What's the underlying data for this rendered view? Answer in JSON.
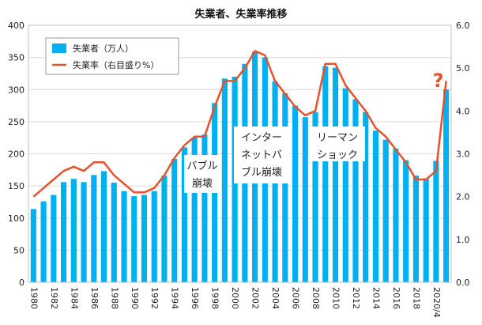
{
  "chart_data": {
    "type": "bar+line",
    "title": "失業者、失業率推移",
    "categories": [
      "1980",
      "1981",
      "1982",
      "1983",
      "1984",
      "1985",
      "1986",
      "1987",
      "1988",
      "1989",
      "1990",
      "1991",
      "1992",
      "1993",
      "1994",
      "1995",
      "1996",
      "1997",
      "1998",
      "1999",
      "2000",
      "2001",
      "2002",
      "2003",
      "2004",
      "2005",
      "2006",
      "2007",
      "2008",
      "2009",
      "2010",
      "2011",
      "2012",
      "2013",
      "2014",
      "2015",
      "2016",
      "2017",
      "2018",
      "2019",
      "2020/4",
      "2020/5"
    ],
    "x_tick_labels": [
      "1980",
      "1982",
      "1984",
      "1986",
      "1988",
      "1990",
      "1992",
      "1994",
      "1996",
      "1998",
      "2000",
      "2002",
      "2004",
      "2006",
      "2008",
      "2010",
      "2012",
      "2014",
      "2016",
      "2018",
      "2020/4"
    ],
    "series": [
      {
        "name": "失業者（万人）",
        "type": "bar",
        "axis": "left",
        "color": "#00b0f0",
        "values": [
          114,
          126,
          136,
          156,
          161,
          156,
          167,
          173,
          155,
          142,
          134,
          136,
          142,
          166,
          192,
          210,
          225,
          230,
          279,
          317,
          320,
          340,
          359,
          350,
          313,
          294,
          275,
          257,
          265,
          336,
          334,
          302,
          285,
          265,
          236,
          222,
          208,
          190,
          166,
          162,
          189,
          300
        ]
      },
      {
        "name": "失業率（右目盛り%）",
        "type": "line",
        "axis": "right",
        "color": "#e8522b",
        "values": [
          2.0,
          2.2,
          2.4,
          2.6,
          2.7,
          2.6,
          2.8,
          2.8,
          2.5,
          2.3,
          2.1,
          2.1,
          2.2,
          2.5,
          2.9,
          3.2,
          3.4,
          3.4,
          4.1,
          4.7,
          4.7,
          5.0,
          5.4,
          5.3,
          4.7,
          4.4,
          4.1,
          3.9,
          4.0,
          5.1,
          5.1,
          4.6,
          4.3,
          4.0,
          3.6,
          3.4,
          3.1,
          2.8,
          2.4,
          2.4,
          2.6,
          4.7
        ]
      }
    ],
    "ylim_left": [
      0,
      400
    ],
    "yticks_left": [
      "0",
      "50",
      "100",
      "150",
      "200",
      "250",
      "300",
      "350",
      "400"
    ],
    "ylim_right": [
      0,
      6
    ],
    "yticks_right": [
      "0.0",
      "1.0",
      "2.0",
      "3.0",
      "4.0",
      "5.0",
      "6.0"
    ],
    "grid": true,
    "legend_position": "top-left",
    "annotations": [
      {
        "lines": [
          "バブル",
          "崩壊"
        ],
        "at": "1996"
      },
      {
        "lines": [
          "インター",
          "ネットバ",
          "ブル崩壊"
        ],
        "at": "2001"
      },
      {
        "lines": [
          "リーマン",
          "ショック"
        ],
        "at": "2009"
      },
      {
        "lines": [
          "?"
        ],
        "at": "2020/5",
        "color": "#e8522b"
      }
    ]
  }
}
